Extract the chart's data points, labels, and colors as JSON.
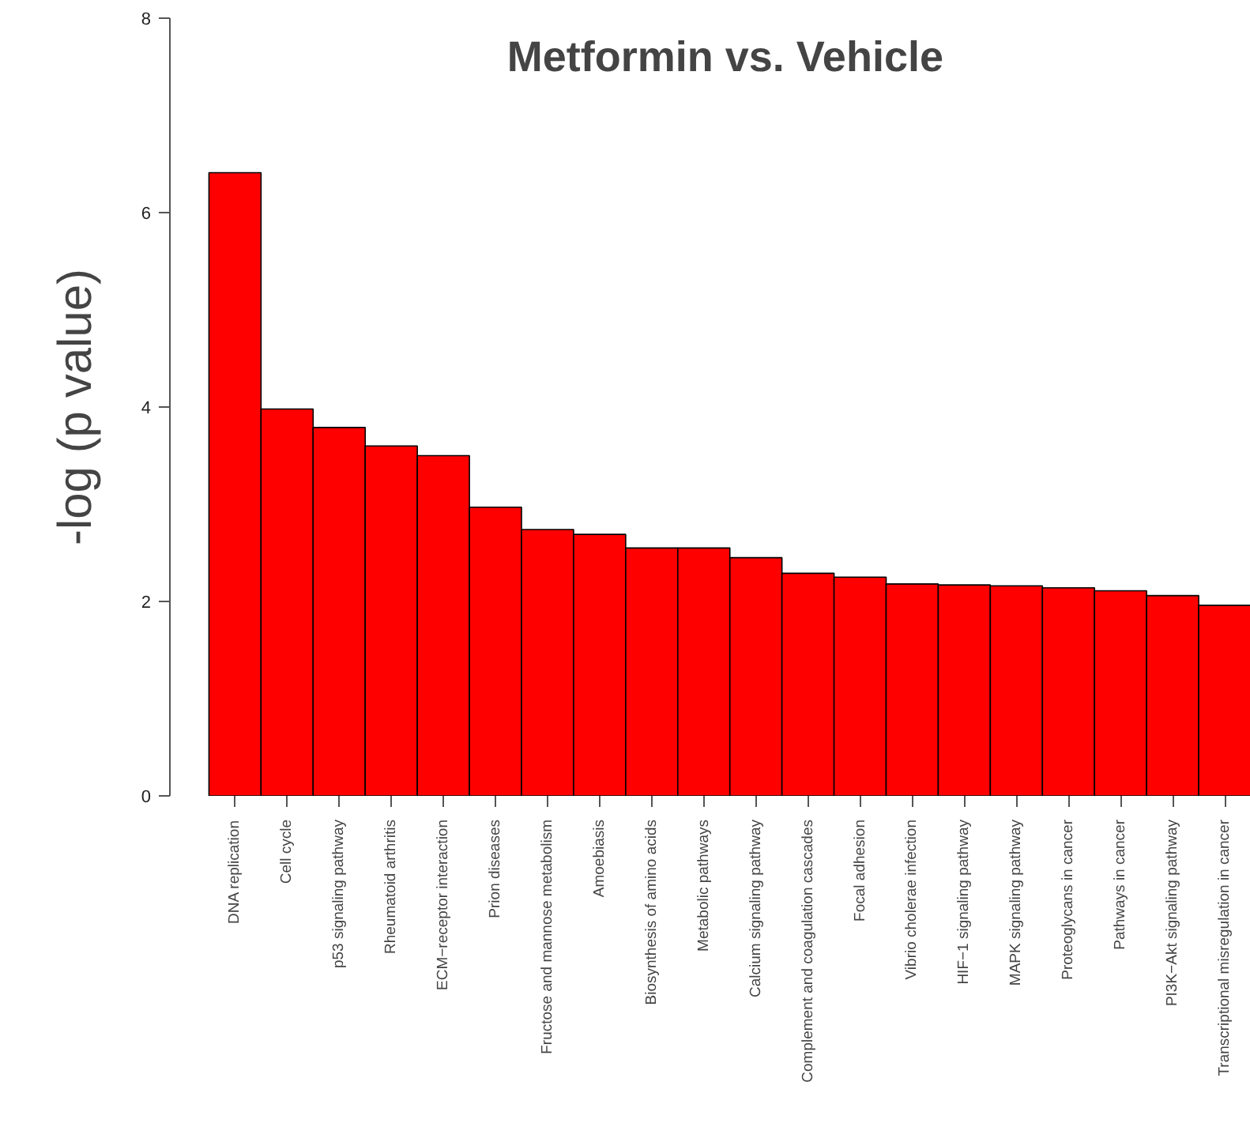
{
  "chart_data": {
    "type": "bar",
    "title": "Metformin  vs. Vehicle",
    "ylabel": "-log (p value)",
    "categories": [
      "DNA replication",
      "Cell cycle",
      "p53 signaling pathway",
      "Rheumatoid arthritis",
      "ECM−receptor interaction",
      "Prion diseases",
      "Fructose and mannose metabolism",
      "Amoebiasis",
      "Biosynthesis of amino acids",
      "Metabolic pathways",
      "Calcium signaling pathway",
      "Complement and coagulation cascades",
      "Focal adhesion",
      "Vibrio cholerae infection",
      "HIF−1 signaling pathway",
      "MAPK signaling pathway",
      "Proteoglycans in cancer",
      "Pathways in cancer",
      "PI3K−Akt signaling pathway",
      "Transcriptional misregulation in cancer"
    ],
    "values": [
      6.41,
      3.98,
      3.79,
      3.6,
      3.5,
      2.97,
      2.74,
      2.69,
      2.55,
      2.55,
      2.45,
      2.29,
      2.25,
      2.18,
      2.17,
      2.16,
      2.14,
      2.11,
      2.06,
      1.96
    ],
    "color": "#ff0000",
    "ylim": [
      0,
      8
    ],
    "yticks": [
      0,
      2,
      4,
      6,
      8
    ],
    "grid": false
  }
}
